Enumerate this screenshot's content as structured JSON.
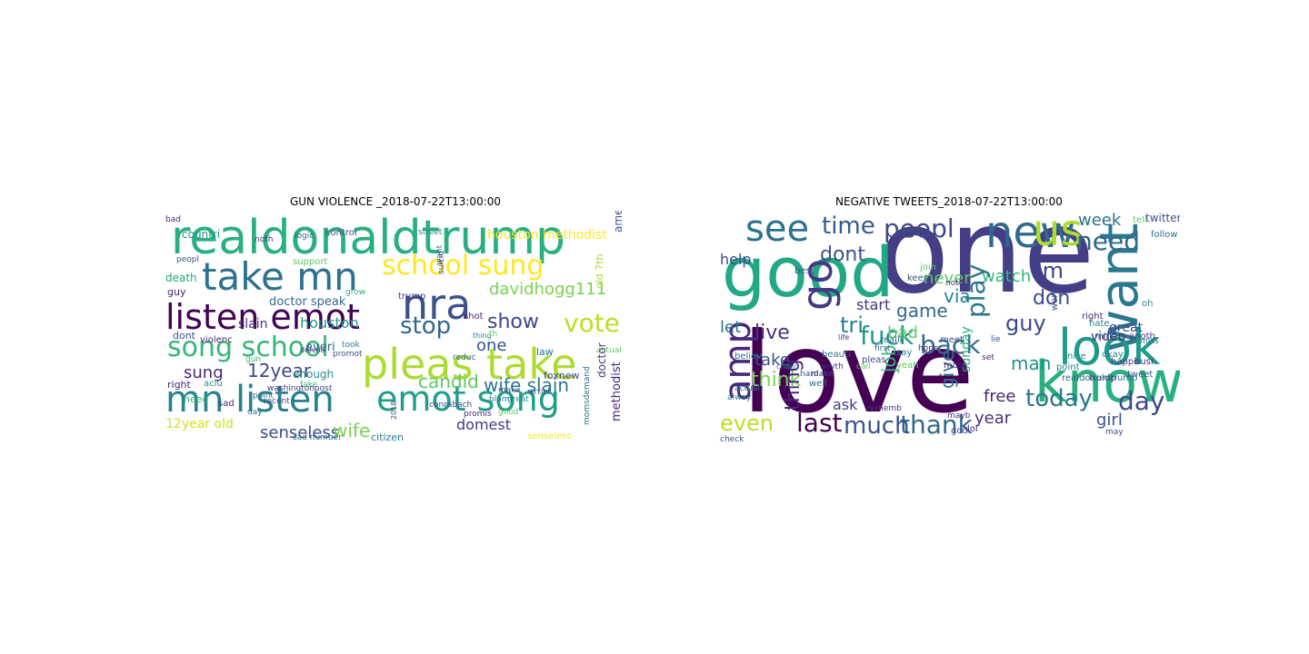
{
  "figures": [
    {
      "title": "GUN VIOLENCE _2018-07-22T13:00:00",
      "words": [
        {
          "text": "realdonaldtrump",
          "color": "#2ab07f"
        },
        {
          "text": "take mn",
          "color": "#2c728e"
        },
        {
          "text": "school sung",
          "color": "#fde725"
        },
        {
          "text": "nra",
          "color": "#3b528b"
        },
        {
          "text": "listen emot",
          "color": "#440154"
        },
        {
          "text": "davidhogg111",
          "color": "#7ad151"
        },
        {
          "text": "song school",
          "color": "#35b779"
        },
        {
          "text": "vote",
          "color": "#bddf26"
        },
        {
          "text": "stop",
          "color": "#31688e"
        },
        {
          "text": "pleas take",
          "color": "#addc30"
        },
        {
          "text": "show",
          "color": "#414487"
        },
        {
          "text": "mn listen",
          "color": "#26828e"
        },
        {
          "text": "emot song",
          "color": "#1f9e89"
        },
        {
          "text": "houston methodist",
          "color": "#fde725"
        },
        {
          "text": "countri",
          "color": "#21918c"
        },
        {
          "text": "12year",
          "color": "#3e4989"
        },
        {
          "text": "sung",
          "color": "#482878"
        },
        {
          "text": "houston",
          "color": "#1f9a8a"
        },
        {
          "text": "slain",
          "color": "#46337e"
        },
        {
          "text": "doctor speak",
          "color": "#31688e"
        },
        {
          "text": "candid",
          "color": "#5ec962"
        },
        {
          "text": "wife slain",
          "color": "#2a788e"
        },
        {
          "text": "one",
          "color": "#3b528b"
        },
        {
          "text": "domest",
          "color": "#443983"
        },
        {
          "text": "senseless",
          "color": "#3e4989"
        },
        {
          "text": "wife",
          "color": "#7ad151"
        },
        {
          "text": "12year old",
          "color": "#d2e21b"
        },
        {
          "text": "death",
          "color": "#22a884"
        },
        {
          "text": "guy",
          "color": "#482475"
        },
        {
          "text": "dont",
          "color": "#3b528b"
        },
        {
          "text": "right",
          "color": "#482878"
        },
        {
          "text": "need",
          "color": "#35b779"
        },
        {
          "text": "enough",
          "color": "#21918c"
        },
        {
          "text": "everi",
          "color": "#31688e"
        },
        {
          "text": "law",
          "color": "#2c728e"
        },
        {
          "text": "shot",
          "color": "#482878"
        },
        {
          "text": "trump",
          "color": "#443983"
        },
        {
          "text": "citizen",
          "color": "#26828e"
        },
        {
          "text": "senseless",
          "color": "#fde725"
        },
        {
          "text": "foxnew",
          "color": "#414487"
        },
        {
          "text": "control",
          "color": "#3e4989"
        },
        {
          "text": "logic",
          "color": "#31688e"
        },
        {
          "text": "street",
          "color": "#26828e"
        },
        {
          "text": "support",
          "color": "#5ec962"
        },
        {
          "text": "noth",
          "color": "#46337e"
        },
        {
          "text": "violenc",
          "color": "#482878"
        },
        {
          "text": "promot",
          "color": "#3b528b"
        },
        {
          "text": "took",
          "color": "#26828e"
        },
        {
          "text": "fake",
          "color": "#35b779"
        },
        {
          "text": "aclu",
          "color": "#21918c"
        },
        {
          "text": "sad",
          "color": "#482878"
        },
        {
          "text": "day",
          "color": "#2c728e"
        },
        {
          "text": "point",
          "color": "#31688e"
        },
        {
          "text": "recent",
          "color": "#3e4989"
        },
        {
          "text": "washingtonpost",
          "color": "#46337e"
        },
        {
          "text": "good",
          "color": "#5ec962"
        },
        {
          "text": "great",
          "color": "#21918c"
        },
        {
          "text": "make",
          "color": "#3b528b"
        },
        {
          "text": "promis",
          "color": "#482878"
        },
        {
          "text": "blame",
          "color": "#26828e"
        },
        {
          "text": "articl",
          "color": "#3b528b"
        },
        {
          "text": "actual",
          "color": "#5ec962"
        },
        {
          "text": "reduc",
          "color": "#31688e"
        },
        {
          "text": "grow",
          "color": "#2ab07f"
        },
        {
          "text": "defend",
          "color": "#46337e"
        },
        {
          "text": "bad",
          "color": "#482878"
        },
        {
          "text": "peopl",
          "color": "#3b528b"
        },
        {
          "text": "sad number",
          "color": "#2c728e"
        },
        {
          "text": "conrabach",
          "color": "#3e4989"
        },
        {
          "text": "gun",
          "color": "#35b779"
        },
        {
          "text": "america",
          "color": "#3b528b"
        },
        {
          "text": "old 7th",
          "color": "#addc30"
        },
        {
          "text": "doctor",
          "color": "#46337e"
        },
        {
          "text": "methodist",
          "color": "#482878"
        },
        {
          "text": "want",
          "color": "#31688e"
        },
        {
          "text": "suicid",
          "color": "#3e4989"
        },
        {
          "text": "thing",
          "color": "#26828e"
        },
        {
          "text": "th",
          "color": "#5ec962"
        },
        {
          "text": "momsdemand",
          "color": "#2c728e"
        },
        {
          "text": "2018",
          "color": "#3b528b"
        }
      ]
    },
    {
      "title": "NEGATIVE TWEETS_2018-07-22T13:00:00",
      "words": [
        {
          "text": "one",
          "color": "#433e85"
        },
        {
          "text": "love",
          "color": "#440154"
        },
        {
          "text": "good",
          "color": "#22a884"
        },
        {
          "text": "see",
          "color": "#2c728e"
        },
        {
          "text": "new",
          "color": "#31688e"
        },
        {
          "text": "us",
          "color": "#addc30"
        },
        {
          "text": "time",
          "color": "#38598c"
        },
        {
          "text": "peopl",
          "color": "#3e4989"
        },
        {
          "text": "go",
          "color": "#443983"
        },
        {
          "text": "want",
          "color": "#2a788e"
        },
        {
          "text": "look",
          "color": "#1f9a8a"
        },
        {
          "text": "know",
          "color": "#2ab07f"
        },
        {
          "text": "amp",
          "color": "#482878"
        },
        {
          "text": "need",
          "color": "#31688e"
        },
        {
          "text": "im",
          "color": "#414487"
        },
        {
          "text": "dont",
          "color": "#3b528b"
        },
        {
          "text": "week",
          "color": "#2c728e"
        },
        {
          "text": "never",
          "color": "#5ec962"
        },
        {
          "text": "watch",
          "color": "#35b779"
        },
        {
          "text": "play",
          "color": "#2a788e"
        },
        {
          "text": "guy",
          "color": "#3e4989"
        },
        {
          "text": "back",
          "color": "#31688e"
        },
        {
          "text": "fuck",
          "color": "#1f9a8a"
        },
        {
          "text": "live",
          "color": "#46337e"
        },
        {
          "text": "tri",
          "color": "#26828e"
        },
        {
          "text": "let",
          "color": "#2c728e"
        },
        {
          "text": "take",
          "color": "#3b528b"
        },
        {
          "text": "think",
          "color": "#7ad151"
        },
        {
          "text": "thing",
          "color": "#482878"
        },
        {
          "text": "game",
          "color": "#31688e"
        },
        {
          "text": "bad",
          "color": "#5ec962"
        },
        {
          "text": "start",
          "color": "#46337e"
        },
        {
          "text": "via",
          "color": "#26828e"
        },
        {
          "text": "don",
          "color": "#3e4989"
        },
        {
          "text": "man",
          "color": "#21918c"
        },
        {
          "text": "give",
          "color": "#2c728e"
        },
        {
          "text": "job",
          "color": "#35b779"
        },
        {
          "text": "free",
          "color": "#482878"
        },
        {
          "text": "today",
          "color": "#2a788e"
        },
        {
          "text": "day",
          "color": "#3e4989"
        },
        {
          "text": "year",
          "color": "#46337e"
        },
        {
          "text": "thank",
          "color": "#31688e"
        },
        {
          "text": "much",
          "color": "#3b528b"
        },
        {
          "text": "last",
          "color": "#440154"
        },
        {
          "text": "even",
          "color": "#bddf26"
        },
        {
          "text": "ask",
          "color": "#443983"
        },
        {
          "text": "girl",
          "color": "#3b528b"
        },
        {
          "text": "help",
          "color": "#3e4989"
        },
        {
          "text": "sunday",
          "color": "#2ab07f"
        },
        {
          "text": "video",
          "color": "#482878"
        },
        {
          "text": "twitter",
          "color": "#3b528b"
        },
        {
          "text": "tell",
          "color": "#5ec962"
        },
        {
          "text": "follow",
          "color": "#2c728e"
        },
        {
          "text": "great",
          "color": "#3e4989"
        },
        {
          "text": "anoth",
          "color": "#46337e"
        },
        {
          "text": "okay",
          "color": "#26828e"
        },
        {
          "text": "right",
          "color": "#482878"
        },
        {
          "text": "mind",
          "color": "#31688e"
        },
        {
          "text": "best",
          "color": "#3b528b"
        },
        {
          "text": "say",
          "color": "#26828e"
        },
        {
          "text": "yeah",
          "color": "#5ec962"
        },
        {
          "text": "pleas",
          "color": "#3e4989"
        },
        {
          "text": "life",
          "color": "#46337e"
        },
        {
          "text": "beauti",
          "color": "#2c728e"
        },
        {
          "text": "realli",
          "color": "#31688e"
        },
        {
          "text": "meet",
          "color": "#3b528b"
        },
        {
          "text": "must",
          "color": "#482878"
        },
        {
          "text": "nice",
          "color": "#21918c"
        },
        {
          "text": "happi",
          "color": "#443983"
        },
        {
          "text": "trump",
          "color": "#3e4989"
        },
        {
          "text": "realdonaldtrump",
          "color": "#31688e"
        },
        {
          "text": "point",
          "color": "#26828e"
        },
        {
          "text": "god",
          "color": "#3b528b"
        },
        {
          "text": "lol",
          "color": "#482878"
        },
        {
          "text": "mayb",
          "color": "#46337e"
        },
        {
          "text": "check",
          "color": "#3b528b"
        },
        {
          "text": "alway",
          "color": "#26828e"
        },
        {
          "text": "actual",
          "color": "#31688e"
        },
        {
          "text": "believ",
          "color": "#2c728e"
        },
        {
          "text": "make",
          "color": "#3e4989"
        },
        {
          "text": "hope",
          "color": "#482878"
        },
        {
          "text": "hate",
          "color": "#26828e"
        },
        {
          "text": "tweet",
          "color": "#3b528b"
        },
        {
          "text": "busi",
          "color": "#46337e"
        },
        {
          "text": "first",
          "color": "#31688e"
        },
        {
          "text": "join",
          "color": "#5ec962"
        },
        {
          "text": "keep",
          "color": "#3b528b"
        },
        {
          "text": "noth",
          "color": "#482878"
        },
        {
          "text": "chang",
          "color": "#26828e"
        },
        {
          "text": "hard",
          "color": "#3e4989"
        },
        {
          "text": "anyth",
          "color": "#46337e"
        },
        {
          "text": "well",
          "color": "#2c728e"
        },
        {
          "text": "call",
          "color": "#5ec962"
        },
        {
          "text": "set",
          "color": "#482878"
        },
        {
          "text": "lie",
          "color": "#3b528b"
        },
        {
          "text": "miss",
          "color": "#31688e"
        },
        {
          "text": "oh",
          "color": "#26828e"
        },
        {
          "text": "may",
          "color": "#3e4989"
        },
        {
          "text": "rememb",
          "color": "#46337e"
        },
        {
          "text": "work",
          "color": "#3b528b"
        }
      ]
    }
  ]
}
